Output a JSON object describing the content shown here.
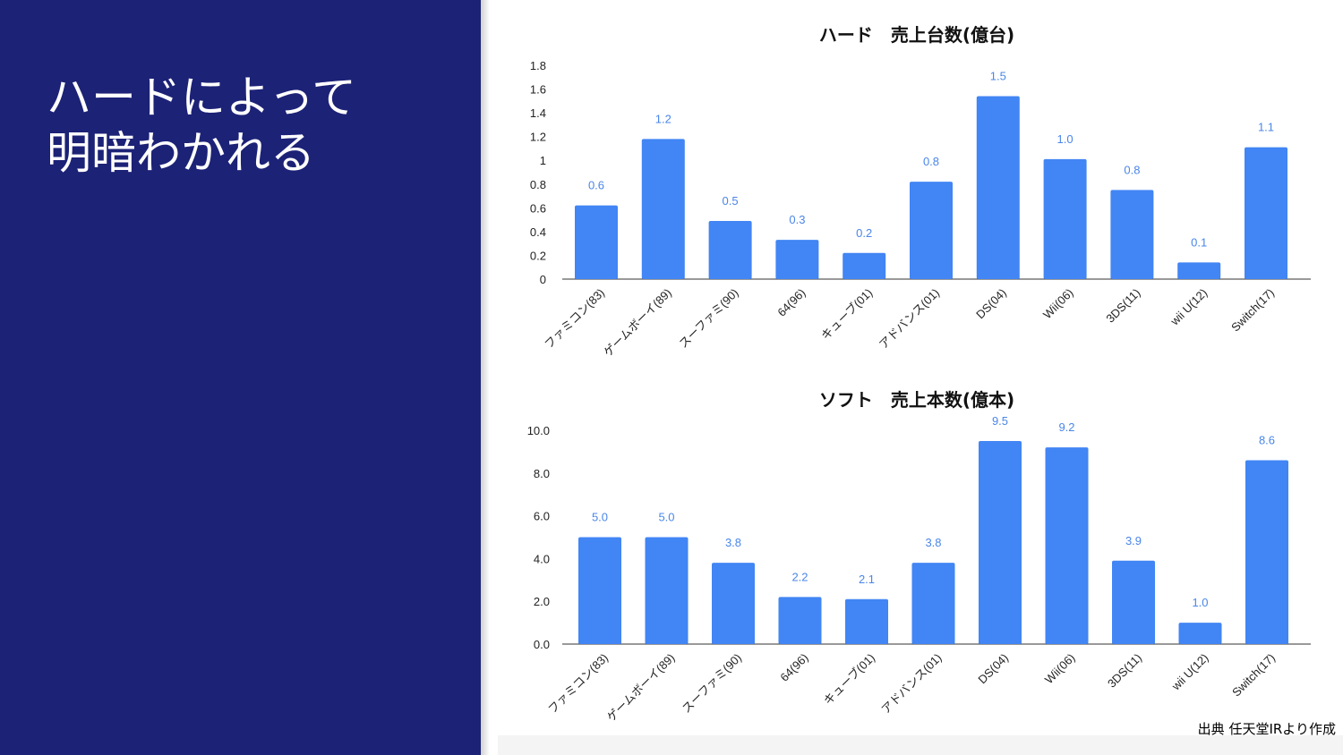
{
  "slide": {
    "title_lines": [
      "ハードによって",
      "明暗わかれる"
    ],
    "source": "出典 任天堂IRより作成"
  },
  "colors": {
    "left_panel": "#1c2276",
    "bar": "#4285f4",
    "data_label": "#4a86e8"
  },
  "chart_data": [
    {
      "type": "bar",
      "title": "ハード　売上台数(億台)",
      "categories": [
        "ファミコン(83)",
        "ゲームボーイ(89)",
        "スーファミ(90)",
        "64(96)",
        "キューブ(01)",
        "アドバンス(01)",
        "DS(04)",
        "Wii(06)",
        "3DS(11)",
        "wii U(12)",
        "Switch(17)"
      ],
      "values": [
        0.62,
        1.18,
        0.49,
        0.33,
        0.22,
        0.82,
        1.54,
        1.01,
        0.75,
        0.14,
        1.11
      ],
      "data_labels": [
        "0.6",
        "1.2",
        "0.5",
        "0.3",
        "0.2",
        "0.8",
        "1.5",
        "1.0",
        "0.8",
        "0.1",
        "1.1"
      ],
      "yticks": [
        "0",
        "0.2",
        "0.4",
        "0.6",
        "0.8",
        "1",
        "1.2",
        "1.4",
        "1.6",
        "1.8"
      ],
      "ylim": [
        0,
        1.8
      ],
      "xlabel": "",
      "ylabel": "",
      "grid": false,
      "legend": "none"
    },
    {
      "type": "bar",
      "title": "ソフト　売上本数(億本)",
      "categories": [
        "ファミコン(83)",
        "ゲームボーイ(89)",
        "スーファミ(90)",
        "64(96)",
        "キューブ(01)",
        "アドバンス(01)",
        "DS(04)",
        "Wii(06)",
        "3DS(11)",
        "wii U(12)",
        "Switch(17)"
      ],
      "values": [
        5.0,
        5.0,
        3.8,
        2.2,
        2.1,
        3.8,
        9.5,
        9.2,
        3.9,
        1.0,
        8.6
      ],
      "data_labels": [
        "5.0",
        "5.0",
        "3.8",
        "2.2",
        "2.1",
        "3.8",
        "9.5",
        "9.2",
        "3.9",
        "1.0",
        "8.6"
      ],
      "yticks": [
        "0.0",
        "2.0",
        "4.0",
        "6.0",
        "8.0",
        "10.0"
      ],
      "ylim": [
        0,
        10
      ],
      "xlabel": "",
      "ylabel": "",
      "grid": false,
      "legend": "none"
    }
  ]
}
